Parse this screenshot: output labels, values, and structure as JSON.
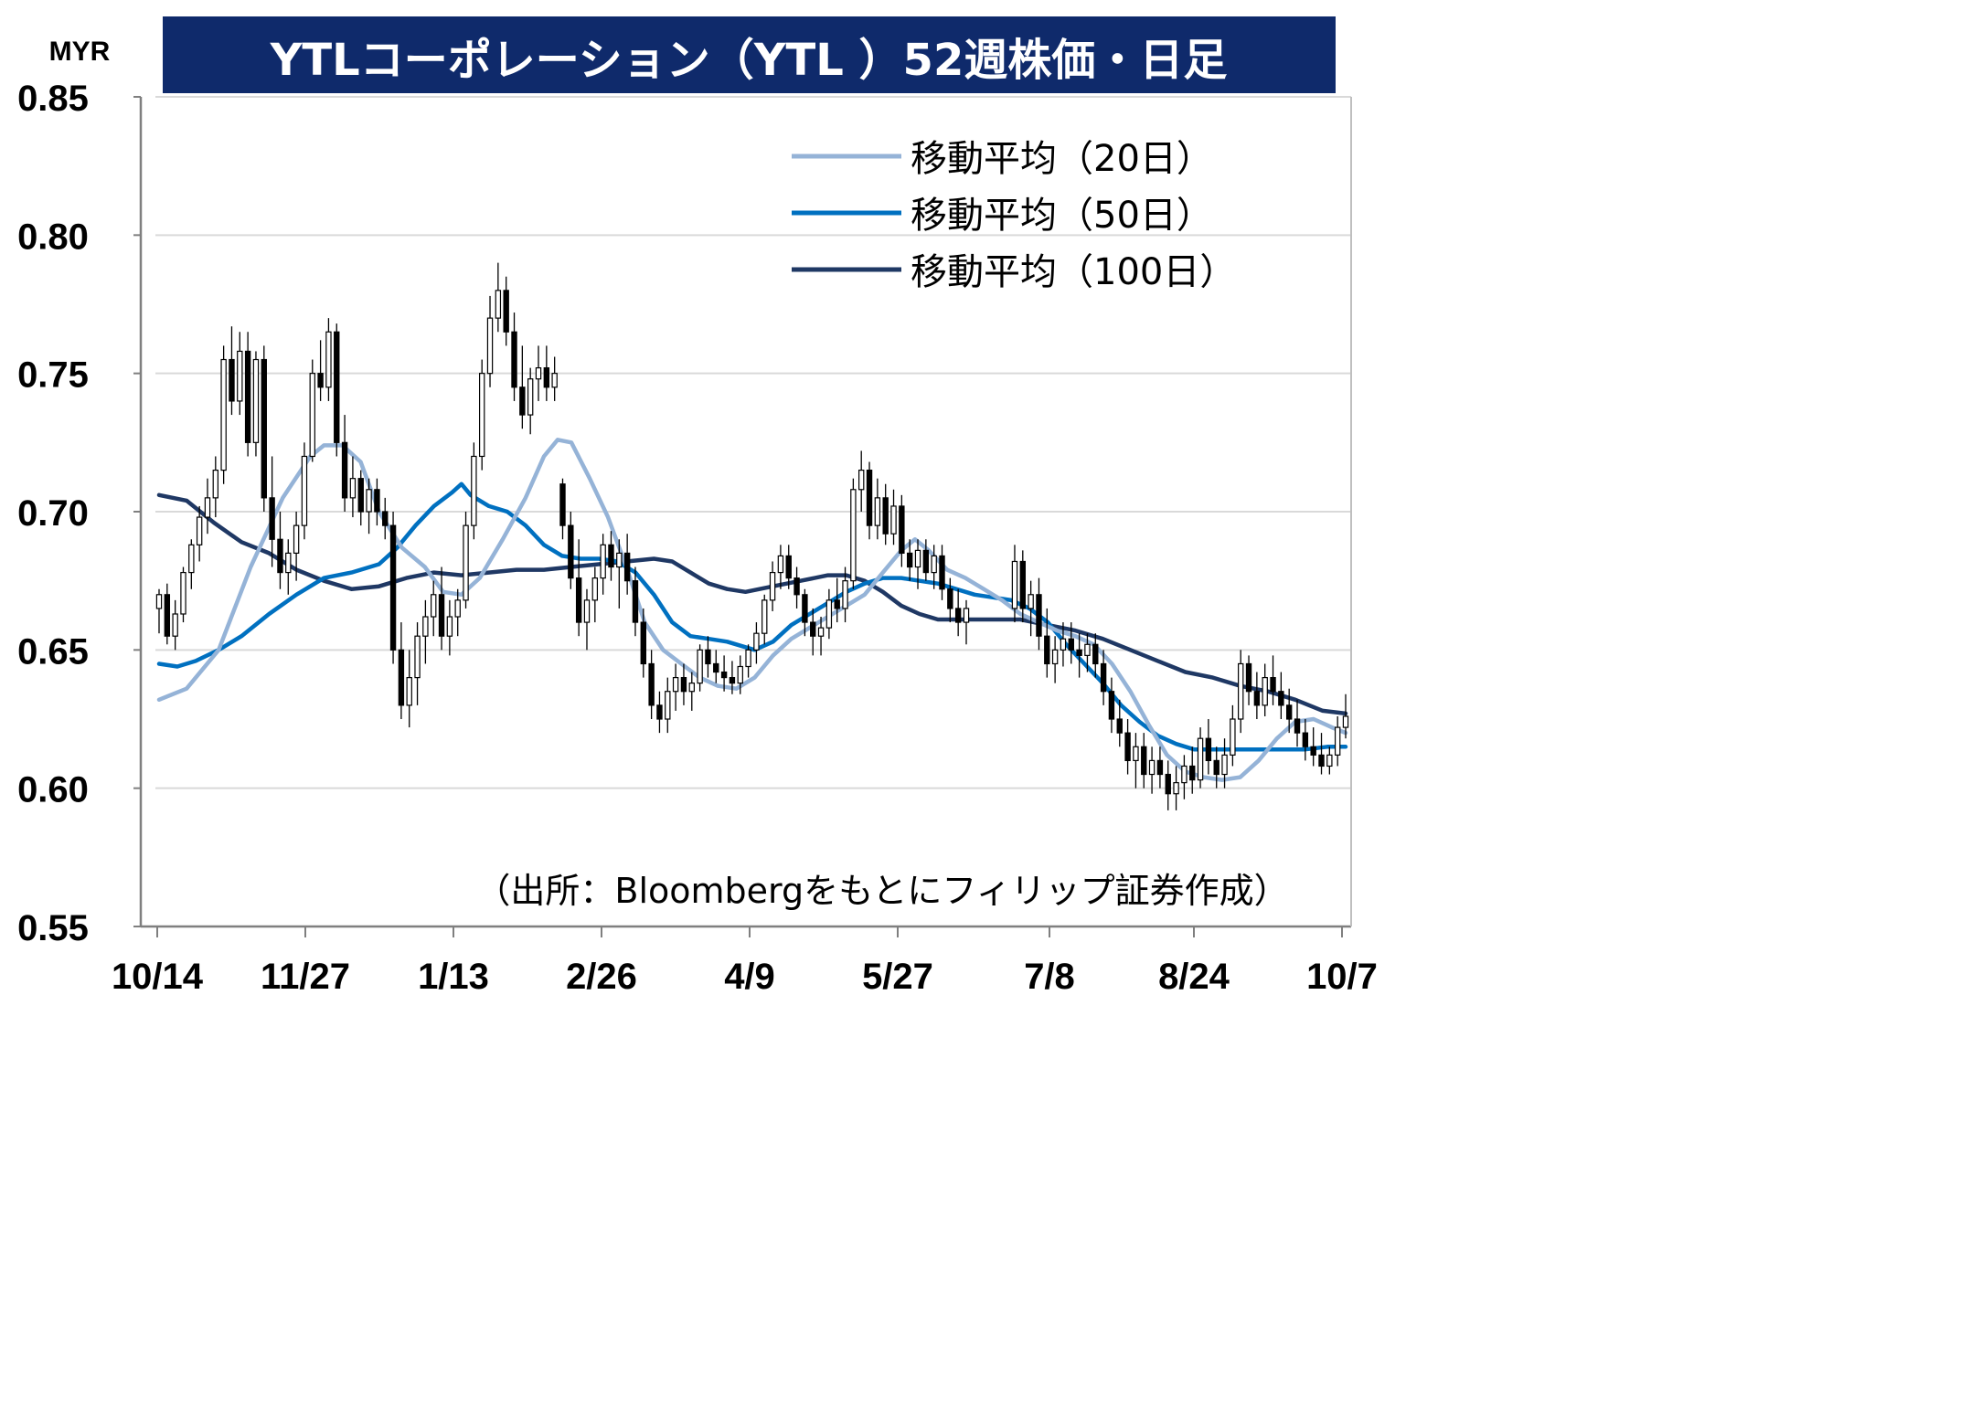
{
  "chart_data": {
    "type": "candlestick",
    "title": "YTLコーポレーション（YTL ）52週株価・日足",
    "unit_label": "MYR",
    "source": "（出所：Bloombergをもとにフィリップ証券作成）",
    "ylim": [
      0.55,
      0.85
    ],
    "y_ticks": [
      "0.85",
      "0.80",
      "0.75",
      "0.70",
      "0.65",
      "0.60",
      "0.55"
    ],
    "y_tick_values": [
      0.85,
      0.8,
      0.75,
      0.7,
      0.65,
      0.6,
      0.55
    ],
    "x_ticks": [
      "10/14",
      "11/27",
      "1/13",
      "2/26",
      "4/9",
      "5/27",
      "7/8",
      "8/24",
      "10/7"
    ],
    "grid": true,
    "legend_position": "top-right",
    "colors": {
      "title_bg": "#0f2a6b",
      "ma20": "#95b3d7",
      "ma50": "#0070c0",
      "ma100": "#1f3864",
      "grid": "#d9d9d9",
      "axis": "#7f7f7f"
    },
    "legend": [
      {
        "label": "移動平均（20日）",
        "color": "#95b3d7"
      },
      {
        "label": "移動平均（50日）",
        "color": "#0070c0"
      },
      {
        "label": "移動平均（100日）",
        "color": "#1f3864"
      }
    ],
    "ma20": [
      [
        0,
        0.632
      ],
      [
        6,
        0.636
      ],
      [
        13,
        0.65
      ],
      [
        20,
        0.68
      ],
      [
        27,
        0.705
      ],
      [
        33,
        0.72
      ],
      [
        36,
        0.724
      ],
      [
        40,
        0.724
      ],
      [
        44,
        0.718
      ],
      [
        48,
        0.7
      ],
      [
        53,
        0.687
      ],
      [
        58,
        0.68
      ],
      [
        62,
        0.671
      ],
      [
        66,
        0.67
      ],
      [
        70,
        0.676
      ],
      [
        75,
        0.69
      ],
      [
        80,
        0.705
      ],
      [
        84,
        0.72
      ],
      [
        87,
        0.726
      ],
      [
        90,
        0.725
      ],
      [
        94,
        0.712
      ],
      [
        98,
        0.698
      ],
      [
        102,
        0.68
      ],
      [
        106,
        0.66
      ],
      [
        110,
        0.65
      ],
      [
        114,
        0.645
      ],
      [
        118,
        0.64
      ],
      [
        122,
        0.637
      ],
      [
        126,
        0.636
      ],
      [
        130,
        0.64
      ],
      [
        134,
        0.648
      ],
      [
        138,
        0.654
      ],
      [
        142,
        0.658
      ],
      [
        146,
        0.662
      ],
      [
        150,
        0.666
      ],
      [
        154,
        0.67
      ],
      [
        158,
        0.678
      ],
      [
        162,
        0.686
      ],
      [
        165,
        0.69
      ],
      [
        168,
        0.686
      ],
      [
        172,
        0.679
      ],
      [
        176,
        0.676
      ],
      [
        180,
        0.672
      ],
      [
        184,
        0.668
      ],
      [
        188,
        0.663
      ],
      [
        192,
        0.66
      ],
      [
        196,
        0.657
      ],
      [
        200,
        0.655
      ],
      [
        204,
        0.652
      ],
      [
        208,
        0.645
      ],
      [
        212,
        0.635
      ],
      [
        216,
        0.623
      ],
      [
        220,
        0.612
      ],
      [
        224,
        0.606
      ],
      [
        228,
        0.604
      ],
      [
        232,
        0.603
      ],
      [
        236,
        0.604
      ],
      [
        240,
        0.61
      ],
      [
        244,
        0.618
      ],
      [
        248,
        0.624
      ],
      [
        252,
        0.625
      ],
      [
        256,
        0.622
      ],
      [
        259,
        0.62
      ]
    ],
    "ma50": [
      [
        0,
        0.645
      ],
      [
        4,
        0.644
      ],
      [
        8,
        0.646
      ],
      [
        13,
        0.65
      ],
      [
        18,
        0.655
      ],
      [
        24,
        0.663
      ],
      [
        30,
        0.67
      ],
      [
        36,
        0.676
      ],
      [
        42,
        0.678
      ],
      [
        48,
        0.681
      ],
      [
        52,
        0.687
      ],
      [
        56,
        0.695
      ],
      [
        60,
        0.702
      ],
      [
        64,
        0.707
      ],
      [
        66,
        0.71
      ],
      [
        68,
        0.706
      ],
      [
        72,
        0.702
      ],
      [
        76,
        0.7
      ],
      [
        80,
        0.695
      ],
      [
        84,
        0.688
      ],
      [
        88,
        0.684
      ],
      [
        92,
        0.683
      ],
      [
        96,
        0.683
      ],
      [
        100,
        0.682
      ],
      [
        104,
        0.678
      ],
      [
        108,
        0.67
      ],
      [
        112,
        0.66
      ],
      [
        116,
        0.655
      ],
      [
        120,
        0.654
      ],
      [
        124,
        0.653
      ],
      [
        128,
        0.651
      ],
      [
        130,
        0.65
      ],
      [
        134,
        0.653
      ],
      [
        138,
        0.659
      ],
      [
        142,
        0.663
      ],
      [
        146,
        0.667
      ],
      [
        150,
        0.671
      ],
      [
        154,
        0.674
      ],
      [
        158,
        0.676
      ],
      [
        162,
        0.676
      ],
      [
        166,
        0.675
      ],
      [
        170,
        0.674
      ],
      [
        174,
        0.672
      ],
      [
        178,
        0.67
      ],
      [
        182,
        0.669
      ],
      [
        186,
        0.668
      ],
      [
        190,
        0.665
      ],
      [
        194,
        0.66
      ],
      [
        198,
        0.652
      ],
      [
        202,
        0.645
      ],
      [
        206,
        0.638
      ],
      [
        210,
        0.63
      ],
      [
        214,
        0.624
      ],
      [
        218,
        0.619
      ],
      [
        222,
        0.616
      ],
      [
        226,
        0.614
      ],
      [
        230,
        0.614
      ],
      [
        234,
        0.614
      ],
      [
        238,
        0.614
      ],
      [
        242,
        0.614
      ],
      [
        246,
        0.614
      ],
      [
        250,
        0.614
      ],
      [
        255,
        0.615
      ],
      [
        259,
        0.615
      ]
    ],
    "ma100": [
      [
        0,
        0.706
      ],
      [
        6,
        0.704
      ],
      [
        12,
        0.696
      ],
      [
        18,
        0.689
      ],
      [
        24,
        0.685
      ],
      [
        30,
        0.679
      ],
      [
        36,
        0.675
      ],
      [
        42,
        0.672
      ],
      [
        48,
        0.673
      ],
      [
        54,
        0.676
      ],
      [
        60,
        0.678
      ],
      [
        66,
        0.677
      ],
      [
        72,
        0.678
      ],
      [
        78,
        0.679
      ],
      [
        84,
        0.679
      ],
      [
        90,
        0.68
      ],
      [
        96,
        0.681
      ],
      [
        102,
        0.682
      ],
      [
        108,
        0.683
      ],
      [
        112,
        0.682
      ],
      [
        116,
        0.678
      ],
      [
        120,
        0.674
      ],
      [
        124,
        0.672
      ],
      [
        128,
        0.671
      ],
      [
        134,
        0.673
      ],
      [
        140,
        0.675
      ],
      [
        146,
        0.677
      ],
      [
        150,
        0.677
      ],
      [
        154,
        0.675
      ],
      [
        158,
        0.671
      ],
      [
        162,
        0.666
      ],
      [
        166,
        0.663
      ],
      [
        170,
        0.661
      ],
      [
        176,
        0.661
      ],
      [
        182,
        0.661
      ],
      [
        188,
        0.661
      ],
      [
        194,
        0.659
      ],
      [
        200,
        0.657
      ],
      [
        206,
        0.654
      ],
      [
        212,
        0.65
      ],
      [
        218,
        0.646
      ],
      [
        224,
        0.642
      ],
      [
        230,
        0.64
      ],
      [
        236,
        0.637
      ],
      [
        242,
        0.635
      ],
      [
        248,
        0.632
      ],
      [
        254,
        0.628
      ],
      [
        259,
        0.627
      ]
    ],
    "candles": [
      [
        0.665,
        0.672,
        0.656,
        0.67
      ],
      [
        0.67,
        0.674,
        0.652,
        0.655
      ],
      [
        0.655,
        0.668,
        0.65,
        0.663
      ],
      [
        0.663,
        0.68,
        0.66,
        0.678
      ],
      [
        0.678,
        0.69,
        0.672,
        0.688
      ],
      [
        0.688,
        0.702,
        0.682,
        0.698
      ],
      [
        0.698,
        0.712,
        0.692,
        0.705
      ],
      [
        0.705,
        0.72,
        0.698,
        0.715
      ],
      [
        0.715,
        0.76,
        0.71,
        0.755
      ],
      [
        0.755,
        0.767,
        0.735,
        0.74
      ],
      [
        0.74,
        0.765,
        0.735,
        0.758
      ],
      [
        0.758,
        0.765,
        0.72,
        0.725
      ],
      [
        0.725,
        0.758,
        0.72,
        0.755
      ],
      [
        0.755,
        0.76,
        0.7,
        0.705
      ],
      [
        0.705,
        0.72,
        0.68,
        0.69
      ],
      [
        0.69,
        0.7,
        0.672,
        0.678
      ],
      [
        0.678,
        0.69,
        0.67,
        0.685
      ],
      [
        0.685,
        0.7,
        0.675,
        0.695
      ],
      [
        0.695,
        0.725,
        0.69,
        0.72
      ],
      [
        0.72,
        0.755,
        0.718,
        0.75
      ],
      [
        0.75,
        0.762,
        0.74,
        0.745
      ],
      [
        0.745,
        0.77,
        0.74,
        0.765
      ],
      [
        0.765,
        0.768,
        0.72,
        0.725
      ],
      [
        0.725,
        0.735,
        0.7,
        0.705
      ],
      [
        0.705,
        0.72,
        0.698,
        0.712
      ],
      [
        0.712,
        0.715,
        0.695,
        0.7
      ],
      [
        0.7,
        0.712,
        0.692,
        0.708
      ],
      [
        0.708,
        0.712,
        0.695,
        0.7
      ],
      [
        0.7,
        0.705,
        0.69,
        0.695
      ],
      [
        0.695,
        0.7,
        0.645,
        0.65
      ],
      [
        0.65,
        0.66,
        0.625,
        0.63
      ],
      [
        0.63,
        0.65,
        0.622,
        0.64
      ],
      [
        0.64,
        0.66,
        0.63,
        0.655
      ],
      [
        0.655,
        0.668,
        0.645,
        0.662
      ],
      [
        0.662,
        0.675,
        0.655,
        0.67
      ],
      [
        0.67,
        0.68,
        0.65,
        0.655
      ],
      [
        0.655,
        0.668,
        0.648,
        0.662
      ],
      [
        0.662,
        0.672,
        0.655,
        0.668
      ],
      [
        0.668,
        0.7,
        0.665,
        0.695
      ],
      [
        0.695,
        0.725,
        0.69,
        0.72
      ],
      [
        0.72,
        0.755,
        0.715,
        0.75
      ],
      [
        0.75,
        0.778,
        0.745,
        0.77
      ],
      [
        0.77,
        0.79,
        0.765,
        0.78
      ],
      [
        0.78,
        0.785,
        0.76,
        0.765
      ],
      [
        0.765,
        0.772,
        0.74,
        0.745
      ],
      [
        0.745,
        0.76,
        0.73,
        0.735
      ],
      [
        0.735,
        0.752,
        0.728,
        0.748
      ],
      [
        0.748,
        0.76,
        0.74,
        0.752
      ],
      [
        0.752,
        0.76,
        0.74,
        0.745
      ],
      [
        0.745,
        0.756,
        0.74,
        0.75
      ],
      [
        0.71,
        0.712,
        0.69,
        0.695
      ],
      [
        0.695,
        0.7,
        0.672,
        0.676
      ],
      [
        0.676,
        0.69,
        0.655,
        0.66
      ],
      [
        0.66,
        0.672,
        0.65,
        0.668
      ],
      [
        0.668,
        0.68,
        0.66,
        0.676
      ],
      [
        0.676,
        0.692,
        0.67,
        0.688
      ],
      [
        0.688,
        0.693,
        0.675,
        0.68
      ],
      [
        0.68,
        0.69,
        0.665,
        0.685
      ],
      [
        0.685,
        0.692,
        0.67,
        0.675
      ],
      [
        0.675,
        0.68,
        0.655,
        0.66
      ],
      [
        0.66,
        0.665,
        0.64,
        0.645
      ],
      [
        0.645,
        0.65,
        0.625,
        0.63
      ],
      [
        0.63,
        0.635,
        0.62,
        0.625
      ],
      [
        0.625,
        0.64,
        0.62,
        0.635
      ],
      [
        0.635,
        0.645,
        0.628,
        0.64
      ],
      [
        0.64,
        0.645,
        0.63,
        0.635
      ],
      [
        0.635,
        0.642,
        0.628,
        0.638
      ],
      [
        0.638,
        0.652,
        0.635,
        0.65
      ],
      [
        0.65,
        0.655,
        0.64,
        0.645
      ],
      [
        0.645,
        0.65,
        0.638,
        0.642
      ],
      [
        0.642,
        0.648,
        0.635,
        0.64
      ],
      [
        0.64,
        0.646,
        0.634,
        0.638
      ],
      [
        0.638,
        0.648,
        0.634,
        0.644
      ],
      [
        0.644,
        0.652,
        0.64,
        0.65
      ],
      [
        0.65,
        0.66,
        0.645,
        0.656
      ],
      [
        0.656,
        0.67,
        0.652,
        0.668
      ],
      [
        0.668,
        0.682,
        0.664,
        0.678
      ],
      [
        0.678,
        0.688,
        0.672,
        0.684
      ],
      [
        0.684,
        0.688,
        0.672,
        0.676
      ],
      [
        0.676,
        0.68,
        0.665,
        0.67
      ],
      [
        0.67,
        0.672,
        0.655,
        0.66
      ],
      [
        0.66,
        0.665,
        0.648,
        0.655
      ],
      [
        0.655,
        0.662,
        0.648,
        0.658
      ],
      [
        0.658,
        0.672,
        0.654,
        0.668
      ],
      [
        0.668,
        0.676,
        0.66,
        0.665
      ],
      [
        0.665,
        0.68,
        0.66,
        0.675
      ],
      [
        0.675,
        0.712,
        0.672,
        0.708
      ],
      [
        0.708,
        0.722,
        0.7,
        0.715
      ],
      [
        0.715,
        0.718,
        0.69,
        0.695
      ],
      [
        0.695,
        0.712,
        0.69,
        0.705
      ],
      [
        0.705,
        0.71,
        0.688,
        0.692
      ],
      [
        0.692,
        0.708,
        0.688,
        0.702
      ],
      [
        0.702,
        0.706,
        0.68,
        0.685
      ],
      [
        0.685,
        0.69,
        0.675,
        0.68
      ],
      [
        0.68,
        0.69,
        0.672,
        0.686
      ],
      [
        0.686,
        0.69,
        0.675,
        0.678
      ],
      [
        0.678,
        0.688,
        0.672,
        0.684
      ],
      [
        0.684,
        0.688,
        0.668,
        0.672
      ],
      [
        0.672,
        0.676,
        0.66,
        0.665
      ],
      [
        0.665,
        0.672,
        0.655,
        0.66
      ],
      [
        0.66,
        0.668,
        0.652,
        0.665
      ],
      [
        0.665,
        0.688,
        0.66,
        0.682
      ],
      [
        0.682,
        0.686,
        0.66,
        0.665
      ],
      [
        0.665,
        0.675,
        0.655,
        0.67
      ],
      [
        0.67,
        0.676,
        0.65,
        0.655
      ],
      [
        0.655,
        0.665,
        0.64,
        0.645
      ],
      [
        0.645,
        0.655,
        0.638,
        0.65
      ],
      [
        0.65,
        0.66,
        0.644,
        0.654
      ],
      [
        0.654,
        0.66,
        0.645,
        0.65
      ],
      [
        0.65,
        0.656,
        0.64,
        0.648
      ],
      [
        0.648,
        0.656,
        0.642,
        0.652
      ],
      [
        0.652,
        0.656,
        0.64,
        0.645
      ],
      [
        0.645,
        0.65,
        0.63,
        0.635
      ],
      [
        0.635,
        0.64,
        0.62,
        0.625
      ],
      [
        0.625,
        0.632,
        0.615,
        0.62
      ],
      [
        0.62,
        0.625,
        0.605,
        0.61
      ],
      [
        0.61,
        0.62,
        0.6,
        0.615
      ],
      [
        0.615,
        0.62,
        0.6,
        0.605
      ],
      [
        0.605,
        0.615,
        0.598,
        0.61
      ],
      [
        0.61,
        0.615,
        0.6,
        0.605
      ],
      [
        0.605,
        0.61,
        0.592,
        0.598
      ],
      [
        0.598,
        0.608,
        0.592,
        0.602
      ],
      [
        0.602,
        0.612,
        0.596,
        0.608
      ],
      [
        0.608,
        0.615,
        0.598,
        0.603
      ],
      [
        0.603,
        0.622,
        0.6,
        0.618
      ],
      [
        0.618,
        0.625,
        0.605,
        0.61
      ],
      [
        0.61,
        0.615,
        0.6,
        0.605
      ],
      [
        0.605,
        0.618,
        0.6,
        0.612
      ],
      [
        0.612,
        0.63,
        0.608,
        0.625
      ],
      [
        0.625,
        0.65,
        0.62,
        0.645
      ],
      [
        0.645,
        0.648,
        0.63,
        0.635
      ],
      [
        0.635,
        0.642,
        0.625,
        0.63
      ],
      [
        0.63,
        0.645,
        0.626,
        0.64
      ],
      [
        0.64,
        0.648,
        0.63,
        0.635
      ],
      [
        0.635,
        0.642,
        0.625,
        0.63
      ],
      [
        0.63,
        0.636,
        0.62,
        0.625
      ],
      [
        0.625,
        0.632,
        0.615,
        0.62
      ],
      [
        0.62,
        0.625,
        0.61,
        0.615
      ],
      [
        0.615,
        0.622,
        0.608,
        0.612
      ],
      [
        0.612,
        0.62,
        0.605,
        0.608
      ],
      [
        0.608,
        0.615,
        0.605,
        0.612
      ],
      [
        0.612,
        0.626,
        0.608,
        0.622
      ],
      [
        0.622,
        0.634,
        0.618,
        0.626
      ]
    ]
  }
}
